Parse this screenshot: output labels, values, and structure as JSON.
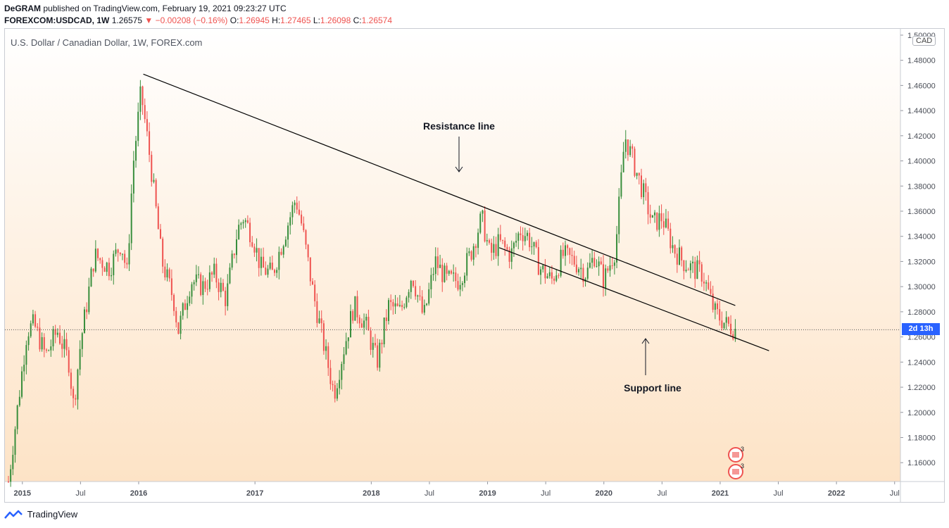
{
  "header": {
    "author": "DeGRAM",
    "published_text": "published on TradingView.com, February 19, 2021 09:23:27 UTC",
    "symbol": "FOREXCOM:USDCAD, 1W",
    "last_price": "1.26575",
    "change_text": "−0.00208 (−0.16%)",
    "o_label": "O:",
    "o_value": "1.26945",
    "h_label": "H:",
    "h_value": "1.27465",
    "l_label": "L:",
    "l_value": "1.26098",
    "c_label": "C:",
    "c_value": "1.26574"
  },
  "legend": "U.S. Dollar / Canadian Dollar, 1W, FOREX.com",
  "currency_badge": "CAD",
  "countdown_badge": "2d 13h",
  "footer": {
    "brand": "TradingView"
  },
  "annotations": {
    "resistance": "Resistance line",
    "support": "Support line",
    "event_count_1": "3",
    "event_count_2": "3"
  },
  "colors": {
    "up": "#26a69a",
    "up_body": "#388e3c",
    "down": "#ef5350",
    "accent": "#2962ff",
    "bg_top": "#ffffff",
    "bg_bottom": "#fde3c6"
  },
  "chart_data": {
    "type": "candlestick",
    "title": "U.S. Dollar / Canadian Dollar, 1W, FOREX.com",
    "ylim": [
      1.145,
      1.505
    ],
    "y_ticks": [
      "1.50000",
      "1.48000",
      "1.46000",
      "1.44000",
      "1.42000",
      "1.40000",
      "1.38000",
      "1.36000",
      "1.34000",
      "1.32000",
      "1.30000",
      "1.28000",
      "1.26000",
      "1.24000",
      "1.22000",
      "1.20000",
      "1.18000",
      "1.16000"
    ],
    "y_tick_values": [
      1.5,
      1.48,
      1.46,
      1.44,
      1.42,
      1.4,
      1.38,
      1.36,
      1.34,
      1.32,
      1.3,
      1.28,
      1.26,
      1.24,
      1.22,
      1.2,
      1.18,
      1.16
    ],
    "x_ticks": [
      "2015",
      "Jul",
      "2016",
      "2017",
      "2018",
      "Jul",
      "2019",
      "Jul",
      "2020",
      "Jul",
      "2021",
      "Jul",
      "2022",
      "Jul"
    ],
    "x_tick_dates": [
      2015.0,
      2015.5,
      2016.0,
      2017.0,
      2018.0,
      2018.5,
      2019.0,
      2019.5,
      2020.0,
      2020.5,
      2021.0,
      2021.5,
      2022.0,
      2022.5
    ],
    "x_range": [
      2014.85,
      2022.55
    ],
    "current_price": 1.26575,
    "resistance_line": [
      [
        2016.04,
        1.469
      ],
      [
        2021.13,
        1.285
      ]
    ],
    "support_line": [
      [
        2019.1,
        1.331
      ],
      [
        2021.42,
        1.249
      ]
    ],
    "anchors": [
      [
        2014.88,
        1.145
      ],
      [
        2015.04,
        1.265
      ],
      [
        2015.1,
        1.27
      ],
      [
        2015.2,
        1.245
      ],
      [
        2015.3,
        1.265
      ],
      [
        2015.4,
        1.24
      ],
      [
        2015.44,
        1.205
      ],
      [
        2015.5,
        1.255
      ],
      [
        2015.62,
        1.325
      ],
      [
        2015.75,
        1.315
      ],
      [
        2015.85,
        1.335
      ],
      [
        2015.9,
        1.31
      ],
      [
        2015.95,
        1.395
      ],
      [
        2016.02,
        1.455
      ],
      [
        2016.1,
        1.4
      ],
      [
        2016.2,
        1.32
      ],
      [
        2016.3,
        1.29
      ],
      [
        2016.34,
        1.265
      ],
      [
        2016.45,
        1.305
      ],
      [
        2016.55,
        1.3
      ],
      [
        2016.65,
        1.31
      ],
      [
        2016.75,
        1.29
      ],
      [
        2016.85,
        1.345
      ],
      [
        2016.9,
        1.355
      ],
      [
        2016.98,
        1.34
      ],
      [
        2017.05,
        1.315
      ],
      [
        2017.15,
        1.31
      ],
      [
        2017.25,
        1.34
      ],
      [
        2017.35,
        1.37
      ],
      [
        2017.4,
        1.35
      ],
      [
        2017.5,
        1.295
      ],
      [
        2017.6,
        1.25
      ],
      [
        2017.68,
        1.215
      ],
      [
        2017.75,
        1.245
      ],
      [
        2017.85,
        1.285
      ],
      [
        2017.95,
        1.27
      ],
      [
        2018.05,
        1.24
      ],
      [
        2018.15,
        1.285
      ],
      [
        2018.25,
        1.28
      ],
      [
        2018.35,
        1.31
      ],
      [
        2018.45,
        1.275
      ],
      [
        2018.55,
        1.32
      ],
      [
        2018.65,
        1.305
      ],
      [
        2018.75,
        1.305
      ],
      [
        2018.85,
        1.325
      ],
      [
        2018.95,
        1.355
      ],
      [
        2019.02,
        1.325
      ],
      [
        2019.1,
        1.335
      ],
      [
        2019.2,
        1.325
      ],
      [
        2019.28,
        1.345
      ],
      [
        2019.35,
        1.34
      ],
      [
        2019.45,
        1.315
      ],
      [
        2019.55,
        1.305
      ],
      [
        2019.65,
        1.325
      ],
      [
        2019.75,
        1.32
      ],
      [
        2019.85,
        1.31
      ],
      [
        2019.92,
        1.325
      ],
      [
        2020.0,
        1.305
      ],
      [
        2020.1,
        1.33
      ],
      [
        2020.18,
        1.42
      ],
      [
        2020.25,
        1.4
      ],
      [
        2020.32,
        1.38
      ],
      [
        2020.42,
        1.35
      ],
      [
        2020.5,
        1.355
      ],
      [
        2020.6,
        1.33
      ],
      [
        2020.68,
        1.32
      ],
      [
        2020.75,
        1.315
      ],
      [
        2020.85,
        1.31
      ],
      [
        2020.95,
        1.28
      ],
      [
        2021.05,
        1.27
      ],
      [
        2021.13,
        1.266
      ]
    ]
  }
}
